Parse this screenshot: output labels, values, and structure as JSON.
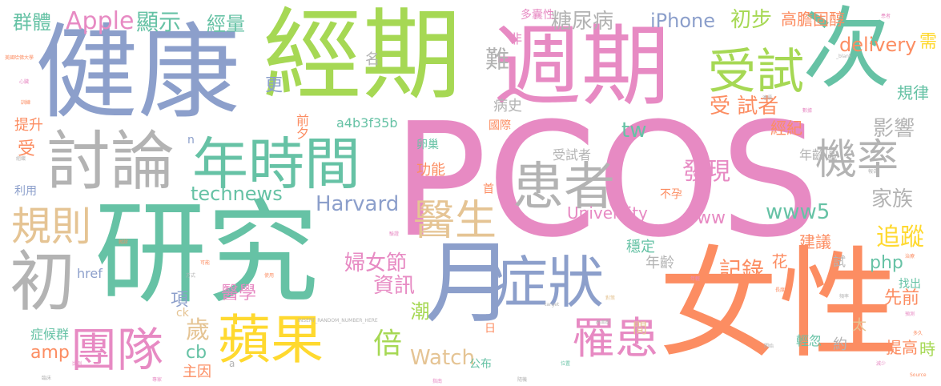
{
  "words": {
    "pcos": "PCOS",
    "jiankang": "健康",
    "jingqi": "經期",
    "zhouqi": "週期",
    "ci": "次",
    "yanjiu": "研究",
    "nvxing": "女性",
    "yue": "月",
    "taolun": "討論",
    "nianshijian": "年時間",
    "shoushi": "受試",
    "huanzhe": "患者",
    "jilv": "機率",
    "zhengzhuang": "症狀",
    "pingguo": "蘋果",
    "tuandui": "團隊",
    "chu": "初",
    "guize": "規則",
    "yisheng": "醫生",
    "luohuan": "罹患",
    "tangniaobing": "糖尿病",
    "iphone": "iPhone",
    "apple": "Apple",
    "xianshi": "顯示",
    "qunti": "群體",
    "jingliang": "經量",
    "chubu": "初步",
    "gaodanguchun": "高膽固醇",
    "delivery": "delivery",
    "shoushizhe": "受 試者",
    "guilv": "規律",
    "yingxiang": "影響",
    "jiazu": "家族",
    "zhuizong": "追蹤",
    "faxian": "發現",
    "technews": "technews",
    "harvard": "Harvard",
    "university": "University",
    "www5": "www5",
    "www": "www",
    "tw": "tw",
    "watch": "Watch",
    "bei": "倍",
    "funvjie": "婦女節",
    "zixun": "資訊",
    "jilu": "記錄",
    "php": "php",
    "jianyi": "建議",
    "wending": "穩定",
    "xianqian": "先前",
    "zhaochu": "找出",
    "tigao": "提高",
    "shi": "時",
    "qingbiao": "輕忽",
    "sui": "歲",
    "cb": "cb",
    "amp": "amp",
    "zhuyin": "主因",
    "zhenghouqun": "症候群",
    "yixue": "醫學",
    "a4b3f35b": "a4b3f35b",
    "tisheng": "提升",
    "shou": "受",
    "liyong": "利用",
    "gongneng": "功能",
    "luanchao": "卵巢",
    "shoushizhe2": "受試者",
    "nianlingqu": "年齡區",
    "buyun": "不孕",
    "bingshi": "病史",
    "guoji": "國際",
    "nianling": "年齡",
    "gongbu": "公布",
    "jingji": "經紀",
    "xu": "需",
    "nan": "難",
    "ming": "名",
    "geng": "更",
    "qianxi": "前夕",
    "xiang": "項",
    "chao": "潮",
    "hua": "花",
    "jian": "間",
    "tai": "太",
    "yue2": "約",
    "shi2": "試",
    "href": "href",
    "ck": "ck",
    "n": "n",
    "duonangxing": "多囊性",
    "fei": "非",
    "shou2": "首",
    "ri": "日",
    "a": "a",
    "insert": "INSERT_RANDOM_NUMBER_HERE",
    "meiguo": "美國哈佛大學",
    "blank": "_blank",
    "target": "target",
    "source": "Source",
    "duojiu": "多久",
    "jianshao": "減少",
    "huanzhe2": "患者",
    "xinzang": "心臟",
    "zuzhi": "組織",
    "xunlian": "訓練",
    "jiuzhen": "就診",
    "nvshi": "女士",
    "shiyong": "使用",
    "yanzheng": "驗證",
    "gaoxueya": "高血壓",
    "duice": "對策",
    "nianqing": "年輕",
    "lianxu": "連續",
    "shuju": "數據",
    "baogao": "報告",
    "zhiliao": "治療",
    "yuce": "預測",
    "pinlv": "頻率",
    "changdu": "長度",
    "kaishi": "開始",
    "weizhi": "位置",
    "suiji": "隨機",
    "zhinan": "指南",
    "fangshi": "方式",
    "keneng": "可能",
    "zhuanjia": "專家",
    "linchuang": "臨床",
    "bili": "比例"
  },
  "colors": {
    "blue": "#8c9fcb",
    "green": "#a6d854",
    "pink": "#e78ac3",
    "teal": "#66c2a5",
    "orange": "#fc8d62",
    "gray": "#b3b3b3",
    "tan": "#e5c494",
    "yellow": "#ffd92f"
  }
}
